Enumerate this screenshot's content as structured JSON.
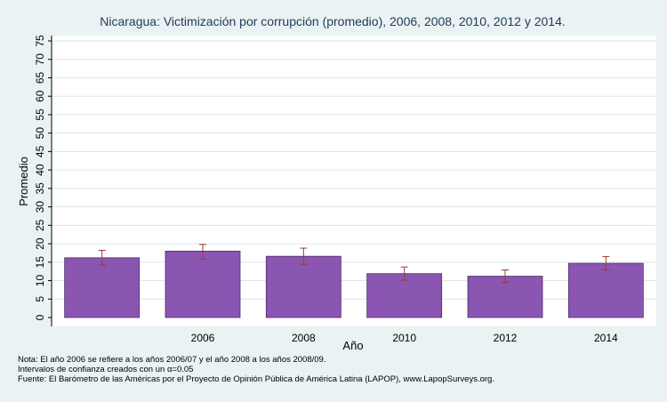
{
  "chart_data": {
    "type": "bar",
    "title": "Nicaragua: Victimización por corrupción (promedio), 2006, 2008, 2010, 2012 y 2014.",
    "xlabel": "Año",
    "ylabel": "Promedio",
    "ylim": [
      0,
      75
    ],
    "y_ticks": [
      0,
      5,
      10,
      15,
      20,
      25,
      30,
      35,
      40,
      45,
      50,
      55,
      60,
      65,
      70,
      75
    ],
    "grid": true,
    "categories": [
      "",
      "2006",
      "2008",
      "2010",
      "2012",
      "2014"
    ],
    "values": [
      16.2,
      18.0,
      16.6,
      11.9,
      11.2,
      14.7
    ],
    "ci_lower": [
      14.3,
      15.8,
      14.4,
      10.1,
      9.5,
      12.9
    ],
    "ci_upper": [
      18.2,
      19.8,
      18.8,
      13.7,
      12.9,
      16.5
    ],
    "colors": {
      "bar": "#8b55b2",
      "bar_edge": "#4a2d68",
      "error_bar": "#9a3a3a",
      "grid": "#dde6e8",
      "plot_bg": "#ffffff",
      "page_bg": "#eaf2f3"
    }
  },
  "notes": [
    "Nota: El año 2006 se refiere a los años 2006/07 y el año 2008 a los años 2008/09.",
    "Intervalos de confianza creados con un α=0.05",
    "Fuente: El Barómetro de las Américas por el Proyecto de Opinión Pública de América Latina (LAPOP), www.LapopSurveys.org."
  ]
}
